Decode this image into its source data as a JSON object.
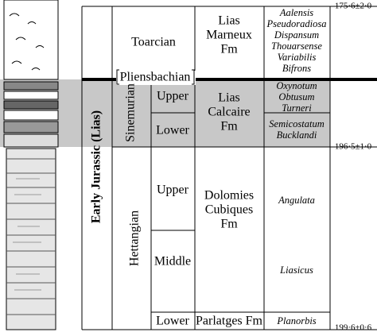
{
  "period": "Early Jurassic (Lias)",
  "stages": {
    "toarcian": "Toarcian",
    "pliensbachian": "Pliensbachian",
    "sinemurian": "Sinemurian",
    "hettangian": "Hettangian"
  },
  "substages": {
    "sinemurian": [
      "Upper",
      "Lower"
    ],
    "hettangian": [
      "Upper",
      "Middle",
      "Lower"
    ]
  },
  "formations": [
    {
      "lines": [
        "Lias",
        "Marneux",
        "Fm"
      ]
    },
    {
      "lines": [
        "Lias",
        "Calcaire",
        "Fm"
      ]
    },
    {
      "lines": [
        "Dolomies",
        "Cubiques",
        "Fm"
      ]
    },
    {
      "lines": [
        "Parlatges Fm"
      ]
    }
  ],
  "zones": {
    "toarcian": [
      "Aalensis",
      "Pseudoradiosa",
      "Dispansum",
      "Thouarsense",
      "Variabilis",
      "Bifrons"
    ],
    "upper_sinemurian": [
      "Oxynotum",
      "Obtusum",
      "Turneri"
    ],
    "lower_sinemurian": [
      "Semicostatum",
      "Bucklandi"
    ],
    "hettangian": [
      "Angulata",
      "Liasicus",
      "Planorbis"
    ]
  },
  "ages": [
    "175·6±2·0",
    "196·5±1·0",
    "199·6±0·6"
  ]
}
